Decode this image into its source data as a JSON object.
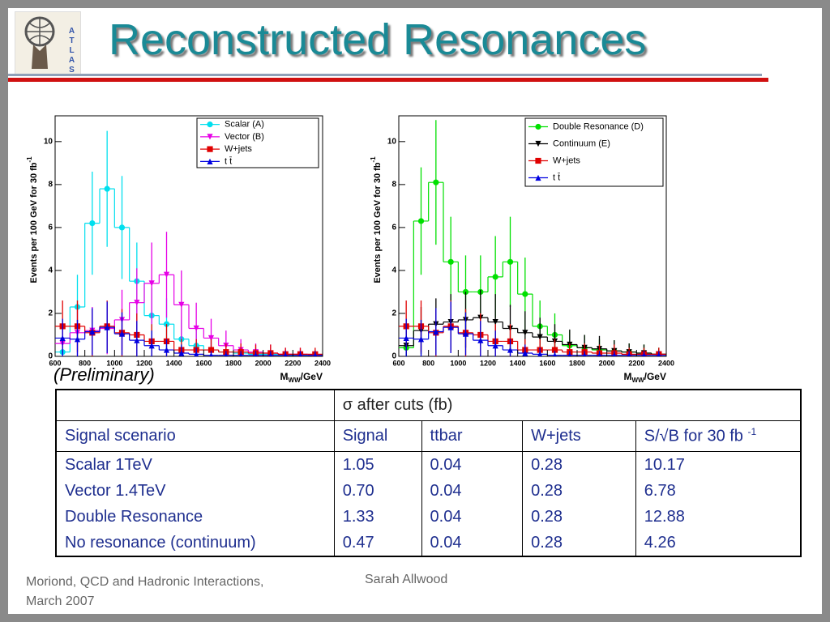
{
  "title": "Reconstructed Resonances",
  "logo_text": "ATLAS",
  "annotation": "(Preliminary)",
  "chart_data": [
    {
      "type": "histogram",
      "ylabel": "Events per 100 GeV for 30 fb",
      "ylabel_sup": "-1",
      "xlabel": "M",
      "xlabel_sub": "WW",
      "xlabel_unit": "/GeV",
      "bins": [
        600,
        700,
        800,
        900,
        1000,
        1100,
        1200,
        1300,
        1400,
        1500,
        1600,
        1700,
        1800,
        1900,
        2000,
        2100,
        2200,
        2300,
        2400
      ],
      "xlim": [
        600,
        2400
      ],
      "xticks": [
        600,
        800,
        1000,
        1200,
        1400,
        1600,
        1800,
        2000,
        2200,
        2400
      ],
      "ylim": [
        0,
        11.2
      ],
      "yticks": [
        0,
        2,
        4,
        6,
        8,
        10
      ],
      "legend": "upper right",
      "series": [
        {
          "name": "Scalar (A)",
          "color": "#00dfee",
          "marker": "circle",
          "values": [
            0.2,
            2.3,
            6.2,
            7.8,
            6.0,
            3.5,
            1.9,
            1.5,
            0.8,
            0.5,
            0.3,
            0.2,
            0.15,
            0.1,
            0.1,
            0.05,
            0.05,
            0.05
          ],
          "errors": [
            0.3,
            1.5,
            2.4,
            2.7,
            2.4,
            1.8,
            1.3,
            1.2,
            0.9,
            0.7,
            0.5,
            0.4,
            0.3,
            0.3,
            0.3,
            0.2,
            0.2,
            0.2
          ]
        },
        {
          "name": "Vector (B)",
          "color": "#e600e6",
          "marker": "tri-down",
          "values": [
            0.6,
            1.1,
            1.2,
            1.3,
            1.7,
            2.5,
            3.4,
            3.8,
            2.4,
            1.3,
            0.85,
            0.5,
            0.3,
            0.2,
            0.15,
            0.1,
            0.1,
            0.05
          ],
          "errors": [
            0.8,
            1.1,
            1.1,
            1.2,
            1.4,
            1.6,
            1.9,
            2.0,
            1.6,
            1.2,
            0.9,
            0.7,
            0.5,
            0.4,
            0.4,
            0.3,
            0.3,
            0.2
          ]
        },
        {
          "name": "W+jets",
          "color": "#e00000",
          "marker": "square",
          "values": [
            1.4,
            1.4,
            1.1,
            1.4,
            1.1,
            1.0,
            0.7,
            0.7,
            0.3,
            0.3,
            0.3,
            0.2,
            0.2,
            0.15,
            0.15,
            0.1,
            0.1,
            0.1
          ],
          "errors": [
            1.2,
            1.2,
            1.1,
            1.2,
            1.1,
            1.0,
            0.8,
            0.8,
            0.5,
            0.5,
            0.5,
            0.4,
            0.4,
            0.4,
            0.4,
            0.3,
            0.3,
            0.3
          ]
        },
        {
          "name": "t t̄",
          "color": "#0000e0",
          "marker": "tri-up",
          "values": [
            0.85,
            0.8,
            1.15,
            1.35,
            1.05,
            0.75,
            0.5,
            0.3,
            0.15,
            0.1,
            0.05,
            0.05,
            0.05,
            0.05,
            0.05,
            0.05,
            0.05,
            0.05
          ],
          "errors": [
            0.9,
            0.9,
            1.1,
            1.2,
            1.0,
            0.9,
            0.7,
            0.5,
            0.4,
            0.3,
            0.2,
            0.2,
            0.2,
            0.2,
            0.2,
            0.2,
            0.2,
            0.2
          ]
        }
      ]
    },
    {
      "type": "histogram",
      "ylabel": "Events per 100 GeV for 30 fb",
      "ylabel_sup": "-1",
      "xlabel": "M",
      "xlabel_sub": "WW",
      "xlabel_unit": "/GeV",
      "bins": [
        600,
        700,
        800,
        900,
        1000,
        1100,
        1200,
        1300,
        1400,
        1500,
        1600,
        1700,
        1800,
        1900,
        2000,
        2100,
        2200,
        2300,
        2400
      ],
      "xlim": [
        600,
        2400
      ],
      "xticks": [
        600,
        800,
        1000,
        1200,
        1400,
        1600,
        1800,
        2000,
        2200,
        2400
      ],
      "ylim": [
        0,
        11.2
      ],
      "yticks": [
        0,
        2,
        4,
        6,
        8,
        10
      ],
      "legend": "upper right",
      "series": [
        {
          "name": "Double Resonance (D)",
          "color": "#00e000",
          "marker": "circle",
          "values": [
            0.4,
            6.3,
            8.1,
            4.4,
            3.0,
            3.0,
            3.7,
            4.4,
            2.9,
            1.4,
            1.0,
            0.5,
            0.4,
            0.3,
            0.25,
            0.2,
            0.15,
            0.1
          ],
          "errors": [
            0.6,
            2.5,
            2.9,
            2.1,
            1.7,
            1.7,
            1.9,
            2.1,
            1.7,
            1.2,
            1.0,
            0.7,
            0.6,
            0.5,
            0.5,
            0.4,
            0.4,
            0.3
          ]
        },
        {
          "name": "Continuum (E)",
          "color": "#000000",
          "marker": "tri-down",
          "values": [
            0.5,
            1.2,
            1.5,
            1.6,
            1.7,
            1.8,
            1.6,
            1.3,
            1.1,
            0.9,
            0.7,
            0.55,
            0.4,
            0.35,
            0.25,
            0.2,
            0.15,
            0.1
          ],
          "errors": [
            0.7,
            1.1,
            1.2,
            1.3,
            1.3,
            1.3,
            1.3,
            1.1,
            1.0,
            0.9,
            0.8,
            0.7,
            0.6,
            0.6,
            0.5,
            0.4,
            0.4,
            0.3
          ]
        },
        {
          "name": "W+jets",
          "color": "#e00000",
          "marker": "square",
          "values": [
            1.4,
            1.4,
            1.1,
            1.4,
            1.1,
            1.0,
            0.7,
            0.7,
            0.3,
            0.3,
            0.3,
            0.2,
            0.2,
            0.15,
            0.15,
            0.1,
            0.1,
            0.1
          ],
          "errors": [
            1.2,
            1.2,
            1.1,
            1.2,
            1.1,
            1.0,
            0.8,
            0.8,
            0.5,
            0.5,
            0.5,
            0.4,
            0.4,
            0.4,
            0.4,
            0.3,
            0.3,
            0.3
          ]
        },
        {
          "name": "t t̄",
          "color": "#0000e0",
          "marker": "tri-up",
          "values": [
            0.85,
            0.8,
            1.15,
            1.35,
            1.05,
            0.75,
            0.5,
            0.3,
            0.15,
            0.1,
            0.05,
            0.05,
            0.05,
            0.05,
            0.05,
            0.05,
            0.05,
            0.05
          ],
          "errors": [
            0.9,
            0.9,
            1.1,
            1.2,
            1.0,
            0.9,
            0.7,
            0.5,
            0.4,
            0.3,
            0.2,
            0.2,
            0.2,
            0.2,
            0.2,
            0.2,
            0.2,
            0.2
          ]
        }
      ]
    }
  ],
  "table": {
    "group_header": "σ after cuts (fb)",
    "columns": [
      "Signal scenario",
      "Signal",
      "ttbar",
      "W+jets",
      "S/√B for 30 fb "
    ],
    "column_sup": "-1",
    "rows": [
      [
        "Scalar 1TeV",
        "1.05",
        "0.04",
        "0.28",
        "10.17"
      ],
      [
        "Vector 1.4TeV",
        "0.70",
        "0.04",
        "0.28",
        "6.78"
      ],
      [
        "Double Resonance",
        "1.33",
        "0.04",
        "0.28",
        "12.88"
      ],
      [
        "No resonance (continuum)",
        "0.47",
        "0.04",
        "0.28",
        "4.26"
      ]
    ]
  },
  "footer": {
    "event": "Moriond, QCD and Hadronic Interactions,",
    "date": "March 2007",
    "author": "Sarah Allwood"
  }
}
